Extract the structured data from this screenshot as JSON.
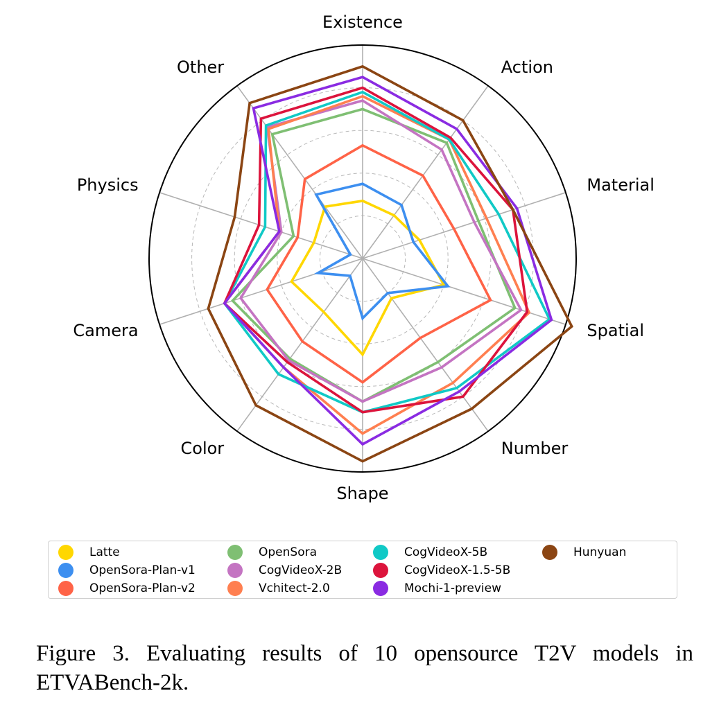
{
  "chart_data": {
    "type": "radar",
    "categories": [
      "Existence",
      "Action",
      "Material",
      "Spatial",
      "Number",
      "Shape",
      "Color",
      "Camera",
      "Physics",
      "Other"
    ],
    "rlim": [
      0,
      1
    ],
    "grid": true,
    "legend_position": "bottom",
    "series": [
      {
        "name": "Latte",
        "color": "#FFD700",
        "values": [
          0.27,
          0.25,
          0.28,
          0.4,
          0.23,
          0.45,
          0.31,
          0.35,
          0.24,
          0.3
        ]
      },
      {
        "name": "OpenSora-Plan-v1",
        "color": "#3D8FF0",
        "values": [
          0.35,
          0.31,
          0.25,
          0.42,
          0.2,
          0.28,
          0.1,
          0.22,
          0.06,
          0.37
        ]
      },
      {
        "name": "OpenSora-Plan-v2",
        "color": "#FF6347",
        "values": [
          0.53,
          0.48,
          0.45,
          0.63,
          0.46,
          0.58,
          0.48,
          0.47,
          0.32,
          0.46
        ]
      },
      {
        "name": "OpenSora",
        "color": "#7FBF73",
        "values": [
          0.7,
          0.67,
          0.57,
          0.75,
          0.6,
          0.67,
          0.58,
          0.64,
          0.34,
          0.72
        ]
      },
      {
        "name": "CogVideoX-2B",
        "color": "#C474C2",
        "values": [
          0.74,
          0.63,
          0.55,
          0.78,
          0.63,
          0.67,
          0.59,
          0.6,
          0.4,
          0.76
        ]
      },
      {
        "name": "Vchitect-2.0",
        "color": "#FF7F50",
        "values": [
          0.76,
          0.69,
          0.61,
          0.82,
          0.72,
          0.82,
          0.63,
          0.68,
          0.41,
          0.75
        ]
      },
      {
        "name": "CogVideoX-5B",
        "color": "#10C9C6",
        "values": [
          0.78,
          0.69,
          0.67,
          0.92,
          0.75,
          0.72,
          0.67,
          0.68,
          0.48,
          0.77
        ]
      },
      {
        "name": "CogVideoX-1.5-5B",
        "color": "#DC143C",
        "values": [
          0.8,
          0.7,
          0.74,
          0.81,
          0.8,
          0.72,
          0.6,
          0.68,
          0.51,
          0.81
        ]
      },
      {
        "name": "Mochi-1-preview",
        "color": "#8A2BE2",
        "values": [
          0.85,
          0.75,
          0.76,
          0.93,
          0.77,
          0.87,
          0.63,
          0.68,
          0.41,
          0.87
        ]
      },
      {
        "name": "Hunyuan",
        "color": "#8B4513",
        "values": [
          0.9,
          0.8,
          0.74,
          1.03,
          0.87,
          0.95,
          0.85,
          0.76,
          0.63,
          0.9
        ]
      }
    ]
  },
  "caption": "Figure 3.  Evaluating results of 10 opensource T2V models in ETVABench-2k."
}
